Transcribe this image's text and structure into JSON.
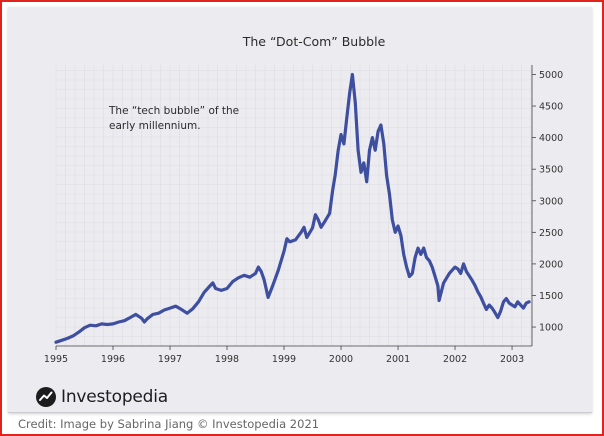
{
  "chart_data": {
    "type": "line",
    "title": "The “Dot-Com” Bubble",
    "annotation_lines": [
      "The “tech bubble” of the",
      "early millennium."
    ],
    "xlabel": "",
    "ylabel": "",
    "x_ticks": [
      "1995",
      "1996",
      "1997",
      "1998",
      "1999",
      "2000",
      "2001",
      "2002",
      "2003"
    ],
    "y_ticks": [
      "1000",
      "1500",
      "2000",
      "2500",
      "3000",
      "3500",
      "4000",
      "4500",
      "5000"
    ],
    "xlim": [
      1995.0,
      2003.35
    ],
    "ylim": [
      700,
      5150
    ],
    "y_axis_position": "right",
    "grid": true,
    "line_color": "#3e4fa0",
    "series": [
      {
        "points": [
          [
            1995.0,
            760
          ],
          [
            1995.1,
            790
          ],
          [
            1995.2,
            820
          ],
          [
            1995.3,
            860
          ],
          [
            1995.4,
            920
          ],
          [
            1995.5,
            990
          ],
          [
            1995.6,
            1030
          ],
          [
            1995.7,
            1020
          ],
          [
            1995.8,
            1050
          ],
          [
            1995.9,
            1040
          ],
          [
            1996.0,
            1050
          ],
          [
            1996.1,
            1080
          ],
          [
            1996.2,
            1100
          ],
          [
            1996.3,
            1150
          ],
          [
            1996.4,
            1200
          ],
          [
            1996.5,
            1140
          ],
          [
            1996.55,
            1080
          ],
          [
            1996.6,
            1130
          ],
          [
            1996.7,
            1200
          ],
          [
            1996.8,
            1220
          ],
          [
            1996.9,
            1270
          ],
          [
            1997.0,
            1300
          ],
          [
            1997.1,
            1330
          ],
          [
            1997.2,
            1280
          ],
          [
            1997.3,
            1220
          ],
          [
            1997.4,
            1290
          ],
          [
            1997.5,
            1400
          ],
          [
            1997.6,
            1550
          ],
          [
            1997.7,
            1650
          ],
          [
            1997.75,
            1700
          ],
          [
            1997.8,
            1610
          ],
          [
            1997.9,
            1580
          ],
          [
            1998.0,
            1610
          ],
          [
            1998.1,
            1720
          ],
          [
            1998.2,
            1780
          ],
          [
            1998.3,
            1820
          ],
          [
            1998.4,
            1790
          ],
          [
            1998.5,
            1850
          ],
          [
            1998.55,
            1950
          ],
          [
            1998.6,
            1880
          ],
          [
            1998.65,
            1750
          ],
          [
            1998.72,
            1470
          ],
          [
            1998.8,
            1650
          ],
          [
            1998.9,
            1900
          ],
          [
            1999.0,
            2200
          ],
          [
            1999.05,
            2400
          ],
          [
            1999.1,
            2350
          ],
          [
            1999.2,
            2380
          ],
          [
            1999.3,
            2500
          ],
          [
            1999.35,
            2580
          ],
          [
            1999.4,
            2420
          ],
          [
            1999.5,
            2570
          ],
          [
            1999.55,
            2780
          ],
          [
            1999.6,
            2700
          ],
          [
            1999.65,
            2580
          ],
          [
            1999.7,
            2650
          ],
          [
            1999.8,
            2800
          ],
          [
            1999.85,
            3150
          ],
          [
            1999.9,
            3420
          ],
          [
            1999.95,
            3800
          ],
          [
            2000.0,
            4050
          ],
          [
            2000.05,
            3900
          ],
          [
            2000.1,
            4300
          ],
          [
            2000.15,
            4700
          ],
          [
            2000.2,
            5000
          ],
          [
            2000.25,
            4550
          ],
          [
            2000.3,
            3800
          ],
          [
            2000.35,
            3450
          ],
          [
            2000.4,
            3600
          ],
          [
            2000.45,
            3300
          ],
          [
            2000.5,
            3800
          ],
          [
            2000.55,
            4000
          ],
          [
            2000.6,
            3800
          ],
          [
            2000.65,
            4100
          ],
          [
            2000.7,
            4200
          ],
          [
            2000.75,
            3900
          ],
          [
            2000.8,
            3400
          ],
          [
            2000.85,
            3100
          ],
          [
            2000.9,
            2700
          ],
          [
            2000.95,
            2500
          ],
          [
            2001.0,
            2600
          ],
          [
            2001.05,
            2450
          ],
          [
            2001.1,
            2150
          ],
          [
            2001.15,
            1950
          ],
          [
            2001.2,
            1800
          ],
          [
            2001.25,
            1850
          ],
          [
            2001.3,
            2100
          ],
          [
            2001.35,
            2250
          ],
          [
            2001.4,
            2150
          ],
          [
            2001.45,
            2250
          ],
          [
            2001.5,
            2100
          ],
          [
            2001.55,
            2050
          ],
          [
            2001.6,
            1950
          ],
          [
            2001.65,
            1800
          ],
          [
            2001.7,
            1650
          ],
          [
            2001.72,
            1420
          ],
          [
            2001.8,
            1700
          ],
          [
            2001.9,
            1850
          ],
          [
            2002.0,
            1950
          ],
          [
            2002.05,
            1920
          ],
          [
            2002.1,
            1850
          ],
          [
            2002.15,
            2000
          ],
          [
            2002.2,
            1880
          ],
          [
            2002.3,
            1740
          ],
          [
            2002.35,
            1660
          ],
          [
            2002.4,
            1560
          ],
          [
            2002.45,
            1480
          ],
          [
            2002.5,
            1380
          ],
          [
            2002.55,
            1280
          ],
          [
            2002.6,
            1350
          ],
          [
            2002.65,
            1300
          ],
          [
            2002.7,
            1230
          ],
          [
            2002.75,
            1150
          ],
          [
            2002.8,
            1250
          ],
          [
            2002.85,
            1400
          ],
          [
            2002.9,
            1450
          ],
          [
            2002.95,
            1380
          ],
          [
            2003.0,
            1350
          ],
          [
            2003.05,
            1320
          ],
          [
            2003.1,
            1400
          ],
          [
            2003.15,
            1350
          ],
          [
            2003.2,
            1300
          ],
          [
            2003.25,
            1380
          ],
          [
            2003.3,
            1400
          ]
        ]
      }
    ]
  },
  "brand": {
    "name": "Investopedia"
  },
  "credit": "Credit: Image by Sabrina Jiang © Investopedia 2021"
}
